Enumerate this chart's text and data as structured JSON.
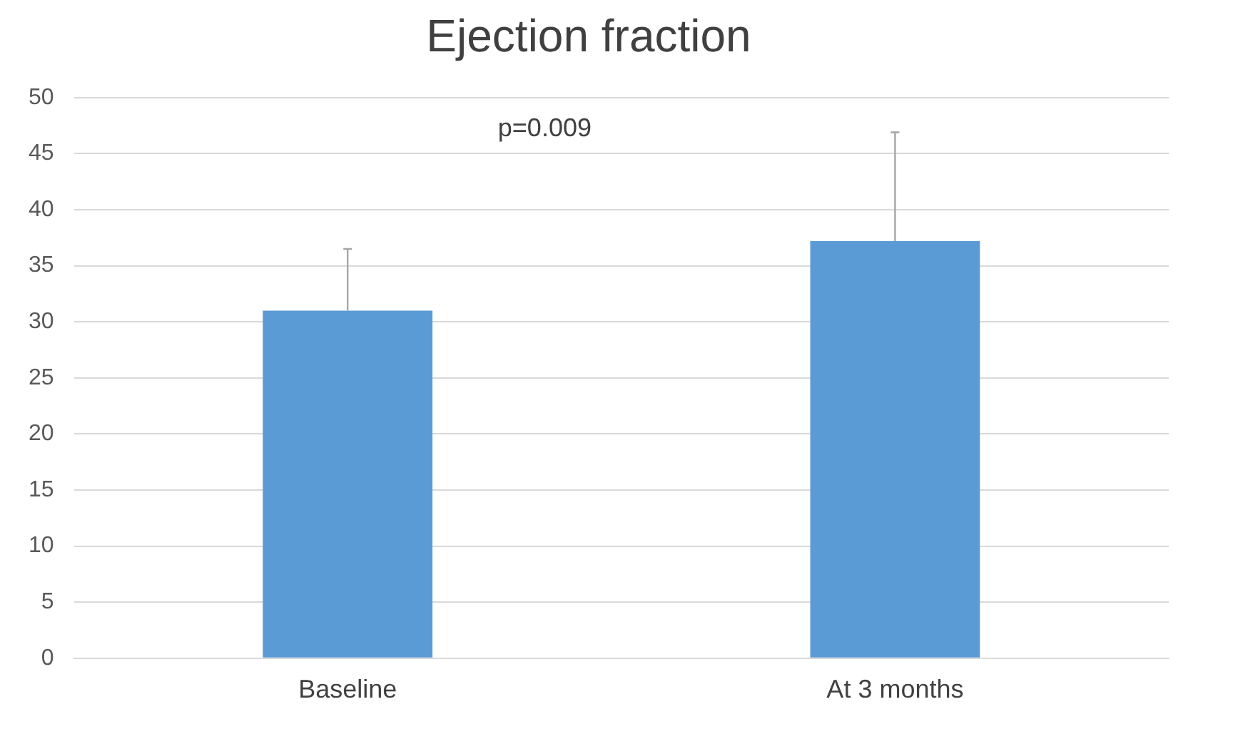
{
  "chart_data": {
    "type": "bar",
    "title": "Ejection fraction",
    "categories": [
      "Baseline",
      "At 3 months"
    ],
    "values": [
      31,
      37.2
    ],
    "errors": [
      [
        31,
        36.5
      ],
      [
        37.2,
        46.9
      ]
    ],
    "color": "#5b9bd5",
    "ylim": [
      0,
      50
    ],
    "yticks": [
      0,
      5,
      10,
      15,
      20,
      25,
      30,
      35,
      40,
      45,
      50
    ],
    "grid": "y",
    "legend": false,
    "annotations": [
      "p=0.009"
    ]
  }
}
